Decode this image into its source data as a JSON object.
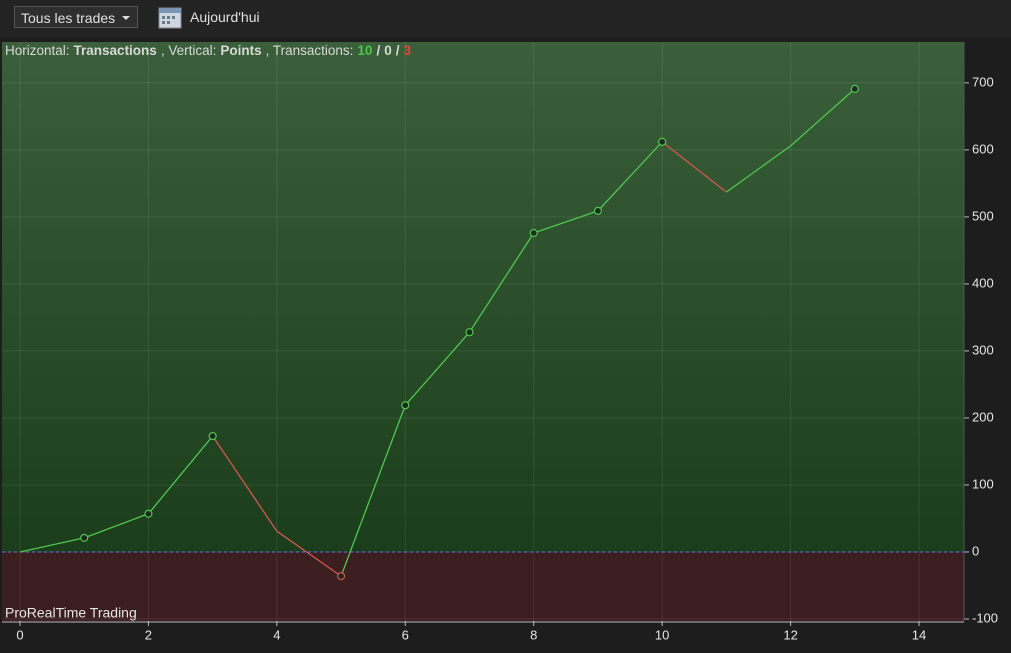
{
  "toolbar": {
    "filter": "Tous les trades",
    "date_button": "Aujourd'hui"
  },
  "chart_data": {
    "type": "line",
    "caption": {
      "h_label": "Horizontal:",
      "h_value": "Transactions",
      "v_label": ", Vertical:",
      "v_value": "Points",
      "t_label": ", Transactions:",
      "wins": 10,
      "sep1": "/",
      "neutral": 0,
      "sep2": "/",
      "losses": 3
    },
    "watermark": "ProRealTime Trading",
    "x": [
      0,
      1,
      2,
      3,
      4,
      5,
      6,
      7,
      8,
      9,
      10,
      11,
      12,
      13
    ],
    "values": [
      0,
      21,
      57,
      173,
      31,
      -36,
      219,
      328,
      476,
      509,
      612,
      537,
      606,
      691
    ],
    "markers": [
      false,
      true,
      true,
      true,
      false,
      true,
      true,
      true,
      true,
      true,
      true,
      false,
      false,
      true
    ],
    "rise_color": "#4fc64f",
    "fall_color": "#d2574c",
    "xlim": [
      -0.28,
      14.7
    ],
    "ylim": [
      -103,
      761
    ],
    "xticks": [
      0,
      2,
      4,
      6,
      8,
      10,
      12,
      14
    ],
    "yticks": [
      -100,
      0,
      100,
      200,
      300,
      400,
      500,
      600,
      700
    ],
    "grid": true
  }
}
